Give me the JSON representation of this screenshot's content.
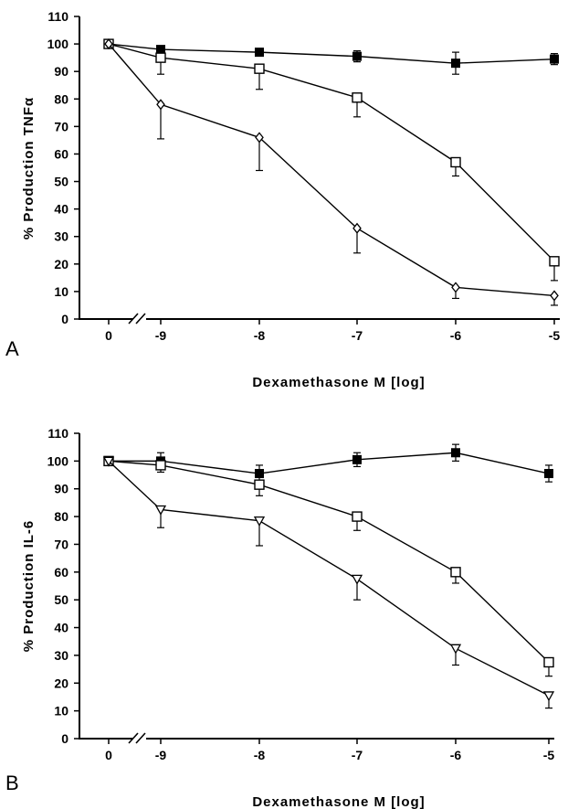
{
  "chart_data": [
    {
      "type": "line",
      "panel_label": "A",
      "ylabel": "% Production  TNFα",
      "xlabel": "Dexamethasone  M  [log]",
      "x_tick_labels": [
        "0",
        "-9",
        "-8",
        "-7",
        "-6",
        "-5"
      ],
      "x": [
        0,
        -9,
        -8,
        -7,
        -6,
        -5
      ],
      "x_axis_break": true,
      "ylim": [
        0,
        110
      ],
      "y_ticks": [
        0,
        10,
        20,
        30,
        40,
        50,
        60,
        70,
        80,
        90,
        100,
        110
      ],
      "grid": false,
      "series": [
        {
          "marker": "filled-square",
          "values": [
            100,
            98,
            97,
            95.5,
            93,
            94.5
          ],
          "err": [
            0,
            0,
            0,
            2,
            4,
            2
          ]
        },
        {
          "marker": "open-square",
          "values": [
            100,
            95,
            91,
            80.5,
            57,
            21
          ],
          "err": [
            0,
            6,
            7.5,
            7,
            5,
            7
          ]
        },
        {
          "marker": "open-diamond",
          "values": [
            100,
            78,
            66,
            33,
            11.5,
            8.5
          ],
          "err": [
            0,
            12.5,
            12,
            9,
            4,
            3.5
          ]
        }
      ]
    },
    {
      "type": "line",
      "panel_label": "B",
      "ylabel": "% Production  IL-6",
      "xlabel": "Dexamethasone  M  [log]",
      "x_tick_labels": [
        "0",
        "-9",
        "-8",
        "-7",
        "-6",
        "-5"
      ],
      "x": [
        0,
        -9,
        -8,
        -7,
        -6,
        -5
      ],
      "x_axis_break": true,
      "ylim": [
        0,
        110
      ],
      "y_ticks": [
        0,
        10,
        20,
        30,
        40,
        50,
        60,
        70,
        80,
        90,
        100,
        110
      ],
      "grid": false,
      "series": [
        {
          "marker": "filled-square",
          "values": [
            100,
            100,
            95.5,
            100.5,
            103,
            95.5
          ],
          "err": [
            0,
            3,
            3,
            2.5,
            3,
            3
          ]
        },
        {
          "marker": "open-square",
          "values": [
            100,
            98.5,
            91.5,
            80,
            60,
            27.5
          ],
          "err": [
            0,
            2.5,
            4,
            5,
            4,
            5
          ]
        },
        {
          "marker": "open-triangle-down",
          "values": [
            100,
            82.5,
            78.5,
            57.5,
            32.5,
            15.5
          ],
          "err": [
            0,
            6.5,
            9,
            7.5,
            6,
            4.5
          ]
        }
      ]
    }
  ]
}
